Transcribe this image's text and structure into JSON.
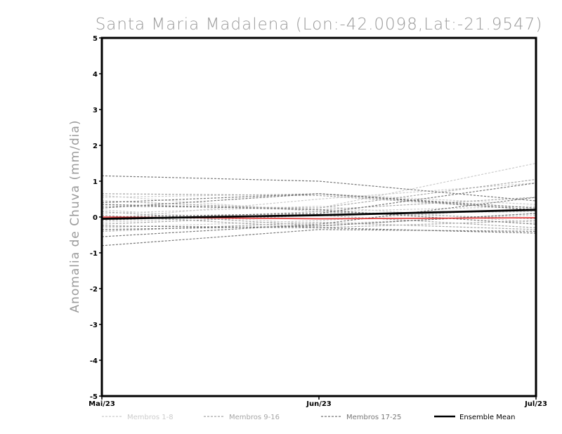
{
  "chart_data": {
    "type": "line",
    "title": "Santa Maria Madalena (Lon:-42.0098,Lat:-21.9547)",
    "xlabel": "",
    "ylabel": "Anomalia de Chuva (mm/dia)",
    "categories": [
      "Mai/23",
      "Jun/23",
      "Jul/23"
    ],
    "ylim": [
      -5,
      5
    ],
    "yticks": [
      "5",
      "4",
      "3",
      "2",
      "1",
      "0",
      "-1",
      "-2",
      "-3",
      "-4",
      "-5"
    ],
    "grid": false,
    "legend_position": "bottom",
    "legend": [
      {
        "label": "Membros 1-8",
        "color": "#cccccc",
        "style": "dashed"
      },
      {
        "label": "Membros 9-16",
        "color": "#a6a6a6",
        "style": "dashed"
      },
      {
        "label": "Membros 17-25",
        "color": "#777777",
        "style": "dashed"
      },
      {
        "label": "Ensemble Mean",
        "color": "#000000",
        "style": "solid"
      }
    ],
    "member_groups": [
      {
        "name": "Membros 1-8",
        "color": "#cccccc",
        "members": [
          [
            0.35,
            0.25,
            1.5
          ],
          [
            0.6,
            0.15,
            0.3
          ],
          [
            0.55,
            0.65,
            0.35
          ],
          [
            -0.05,
            0.5,
            0.95
          ],
          [
            0.2,
            -0.2,
            0.05
          ],
          [
            -0.3,
            -0.1,
            0.25
          ],
          [
            0.1,
            0.3,
            -0.15
          ],
          [
            -0.15,
            0.1,
            0.15
          ]
        ]
      },
      {
        "name": "Membros 9-16",
        "color": "#a6a6a6",
        "members": [
          [
            0.45,
            0.2,
            0.55
          ],
          [
            0.15,
            -0.25,
            0.1
          ],
          [
            -0.2,
            0.05,
            -0.3
          ],
          [
            0.3,
            0.25,
            1.05
          ],
          [
            -0.4,
            -0.15,
            -0.35
          ],
          [
            0.05,
            -0.3,
            -0.1
          ],
          [
            0.65,
            0.6,
            0.2
          ],
          [
            -0.1,
            0.15,
            -0.05
          ]
        ]
      },
      {
        "name": "Membros 17-25",
        "color": "#777777",
        "members": [
          [
            1.15,
            1.0,
            0.45
          ],
          [
            0.4,
            0.65,
            0.2
          ],
          [
            -0.8,
            -0.35,
            -0.4
          ],
          [
            -0.55,
            -0.2,
            0.55
          ],
          [
            0.25,
            0.65,
            0.25
          ],
          [
            -0.25,
            -0.3,
            -0.45
          ],
          [
            0.0,
            0.1,
            0.95
          ],
          [
            -0.35,
            -0.25,
            0.1
          ],
          [
            0.35,
            0.2,
            -0.2
          ]
        ]
      }
    ],
    "ensemble_mean": {
      "name": "Ensemble Mean",
      "color": "#000000",
      "values": [
        -0.05,
        0.05,
        0.2
      ]
    },
    "reference_line": {
      "color": "#e03030",
      "values": [
        0.0,
        -0.05,
        -0.02
      ]
    }
  }
}
